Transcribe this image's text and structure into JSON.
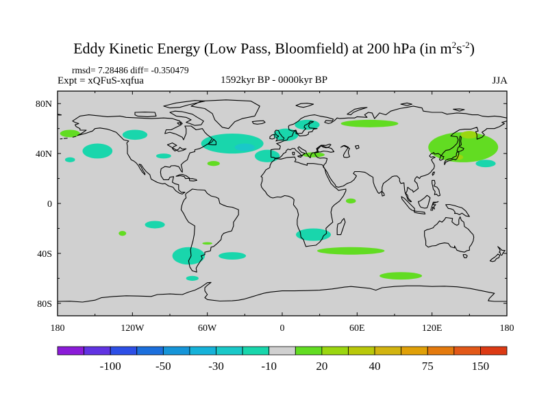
{
  "header": {
    "title": "Eddy Kinetic Energy (Low Pass, Bloomfield) at 200 hPa (in m",
    "title_sup1": "2",
    "title_mid": "s",
    "title_sup2": "-2",
    "title_end": ")",
    "rmsd_text": "rmsd= 7.28486 diff= -0.350479",
    "expt_text": "Expt = xQFuS-xqfua",
    "period_text": "1592kyr BP - 0000kyr BP",
    "season_text": "JJA"
  },
  "chart_data": {
    "type": "heatmap",
    "title": "Eddy Kinetic Energy (Low Pass, Bloomfield) at 200 hPa (in m^2 s^-2)",
    "xlim": [
      -180,
      180
    ],
    "ylim": [
      -90,
      90
    ],
    "x_ticks": [
      {
        "value": -180,
        "label": "180"
      },
      {
        "value": -120,
        "label": "120W"
      },
      {
        "value": -60,
        "label": "60W"
      },
      {
        "value": 0,
        "label": "0"
      },
      {
        "value": 60,
        "label": "60E"
      },
      {
        "value": 120,
        "label": "120E"
      },
      {
        "value": 180,
        "label": "180"
      }
    ],
    "y_ticks": [
      {
        "value": 80,
        "label": "80N"
      },
      {
        "value": 40,
        "label": "40N"
      },
      {
        "value": 0,
        "label": "0"
      },
      {
        "value": -40,
        "label": "40S"
      },
      {
        "value": -80,
        "label": "80S"
      }
    ],
    "colorbar": {
      "colors": [
        "#8b1bd8",
        "#6133e2",
        "#2d4fe6",
        "#1c6fdc",
        "#1695d8",
        "#16b2d9",
        "#1ac8c8",
        "#19d6ac",
        "#d0d0d0",
        "#62dc22",
        "#9bd610",
        "#b9c80a",
        "#d2b410",
        "#e0a008",
        "#e47a0e",
        "#e25818",
        "#dc3a14"
      ],
      "labels": [
        {
          "boundary": 2,
          "text": "-100"
        },
        {
          "boundary": 4,
          "text": "-50"
        },
        {
          "boundary": 6,
          "text": "-30"
        },
        {
          "boundary": 8,
          "text": "-10"
        },
        {
          "boundary": 10,
          "text": "20"
        },
        {
          "boundary": 12,
          "text": "40"
        },
        {
          "boundary": 14,
          "text": "75"
        },
        {
          "boundary": 16,
          "text": "150"
        }
      ]
    },
    "anomaly_regions": [
      {
        "name": "North Atlantic",
        "lon": -40,
        "lat": 48,
        "rlon": 25,
        "rlat": 8,
        "color": "#19d6ac"
      },
      {
        "name": "North Atlantic core",
        "lon": -30,
        "lat": 45,
        "rlon": 8,
        "rlat": 3,
        "color": "#1ac8c8"
      },
      {
        "name": "Eastern North Atlantic",
        "lon": -12,
        "lat": 38,
        "rlon": 10,
        "rlat": 5,
        "color": "#19d6ac"
      },
      {
        "name": "Western Europe",
        "lon": 3,
        "lat": 55,
        "rlon": 10,
        "rlat": 5,
        "color": "#19d6ac"
      },
      {
        "name": "Scandinavia",
        "lon": 20,
        "lat": 63,
        "rlon": 10,
        "rlat": 4,
        "color": "#19d6ac"
      },
      {
        "name": "North Pacific East",
        "lon": -148,
        "lat": 42,
        "rlon": 12,
        "rlat": 6,
        "color": "#19d6ac"
      },
      {
        "name": "North America West",
        "lon": -118,
        "lat": 55,
        "rlon": 10,
        "rlat": 4,
        "color": "#19d6ac"
      },
      {
        "name": "Gulf Coast",
        "lon": -95,
        "lat": 38,
        "rlon": 6,
        "rlat": 2,
        "color": "#19d6ac"
      },
      {
        "name": "Central Pacific",
        "lon": -170,
        "lat": 35,
        "rlon": 4,
        "rlat": 2,
        "color": "#19d6ac"
      },
      {
        "name": "Subtropical North Atlantic",
        "lon": -55,
        "lat": 32,
        "rlon": 5,
        "rlat": 2,
        "color": "#62dc22"
      },
      {
        "name": "Mediterranean",
        "lon": 25,
        "lat": 39,
        "rlon": 9,
        "rlat": 2,
        "color": "#62dc22"
      },
      {
        "name": "Siberia",
        "lon": 70,
        "lat": 64,
        "rlon": 23,
        "rlat": 3,
        "color": "#62dc22"
      },
      {
        "name": "North Pacific West",
        "lon": 145,
        "lat": 45,
        "rlon": 28,
        "rlat": 12,
        "color": "#62dc22"
      },
      {
        "name": "Kamchatka",
        "lon": 150,
        "lat": 55,
        "rlon": 7,
        "rlat": 3,
        "color": "#9bd610"
      },
      {
        "name": "North Pacific near Japan",
        "lon": 142,
        "lat": 37,
        "rlon": 3,
        "rlat": 2,
        "color": "#9bd610"
      },
      {
        "name": "Alaska",
        "lon": -170,
        "lat": 56,
        "rlon": 8,
        "rlat": 3,
        "color": "#62dc22"
      },
      {
        "name": "Arabian Sea",
        "lon": 55,
        "lat": 2,
        "rlon": 4,
        "rlat": 2,
        "color": "#62dc22"
      },
      {
        "name": "Southern Indian Ocean",
        "lon": 55,
        "lat": -38,
        "rlon": 27,
        "rlat": 3,
        "color": "#62dc22"
      },
      {
        "name": "South Indian Ocean East",
        "lon": 95,
        "lat": -58,
        "rlon": 17,
        "rlat": 3,
        "color": "#62dc22"
      },
      {
        "name": "South Pacific Central",
        "lon": -102,
        "lat": -17,
        "rlon": 8,
        "rlat": 3,
        "color": "#19d6ac"
      },
      {
        "name": "South America South",
        "lon": -75,
        "lat": -42,
        "rlon": 13,
        "rlat": 7,
        "color": "#19d6ac"
      },
      {
        "name": "Southern Ocean Drake",
        "lon": -72,
        "lat": -60,
        "rlon": 5,
        "rlat": 2,
        "color": "#19d6ac"
      },
      {
        "name": "South Atlantic",
        "lon": -40,
        "lat": -42,
        "rlon": 11,
        "rlat": 3,
        "color": "#19d6ac"
      },
      {
        "name": "Southern Africa",
        "lon": 25,
        "lat": -25,
        "rlon": 14,
        "rlat": 5,
        "color": "#19d6ac"
      },
      {
        "name": "South Pacific small",
        "lon": -128,
        "lat": -24,
        "rlon": 3,
        "rlat": 2,
        "color": "#62dc22"
      },
      {
        "name": "South America Atlantic",
        "lon": -60,
        "lat": -32,
        "rlon": 4,
        "rlat": 1,
        "color": "#62dc22"
      },
      {
        "name": "North Pacific East Green",
        "lon": 163,
        "lat": 32,
        "rlon": 8,
        "rlat": 3,
        "color": "#19d6ac"
      }
    ]
  }
}
